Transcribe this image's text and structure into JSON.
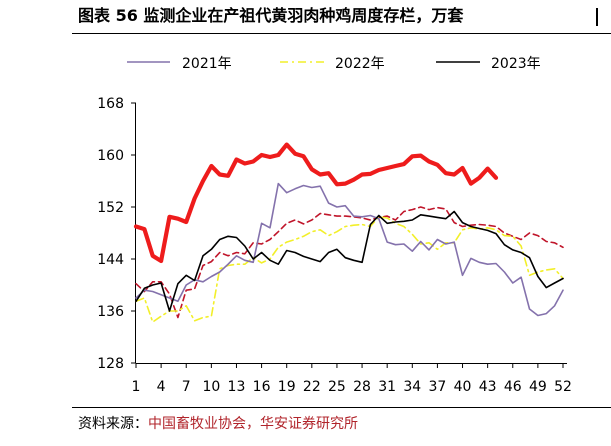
{
  "title": "图表 56  监测企业在产祖代黄羽肉种鸡周度存栏，万套",
  "source": {
    "label": "资料来源：",
    "organizations": "中国畜牧业协会，华安证券研究所"
  },
  "colors": {
    "series_2021": "#8472ac",
    "series_2022": "#f2ef2a",
    "series_2023": "#000000",
    "series_red": "#ee1c1c",
    "series_darkred": "#c0152a",
    "axis": "#000000"
  },
  "chart_data": {
    "type": "line",
    "title": "监测企业在产祖代黄羽肉种鸡周度存栏，万套",
    "xlabel": "",
    "ylabel": "",
    "ylim": [
      128,
      168
    ],
    "yticks": [
      128,
      136,
      144,
      152,
      160,
      168
    ],
    "xlim": [
      1,
      52
    ],
    "xticks": [
      1,
      4,
      7,
      10,
      13,
      16,
      19,
      22,
      25,
      28,
      31,
      34,
      37,
      40,
      43,
      46,
      49,
      52
    ],
    "legend_position": "top",
    "legend": [
      "2021年",
      "2022年",
      "2023年"
    ],
    "series": [
      {
        "name": "2021年",
        "style": "solid",
        "color": "#8472ac",
        "in_legend": true,
        "x": [
          1,
          2,
          3,
          4,
          5,
          6,
          7,
          8,
          9,
          10,
          11,
          12,
          13,
          14,
          15,
          16,
          17,
          18,
          19,
          20,
          21,
          22,
          23,
          24,
          25,
          26,
          27,
          28,
          29,
          30,
          31,
          32,
          33,
          34,
          35,
          36,
          37,
          38,
          39,
          40,
          41,
          42,
          43,
          44,
          45,
          46,
          47,
          48,
          49,
          50,
          51,
          52
        ],
        "values": [
          138.0,
          139.2,
          139.0,
          138.5,
          138.0,
          137.5,
          140.0,
          140.8,
          140.5,
          141.3,
          142.0,
          143.2,
          144.5,
          143.8,
          143.5,
          149.5,
          148.8,
          155.6,
          154.2,
          154.8,
          155.3,
          155.0,
          155.2,
          152.6,
          152.0,
          152.2,
          150.6,
          150.5,
          150.7,
          150.2,
          146.6,
          146.2,
          146.3,
          145.2,
          146.7,
          145.4,
          147.0,
          146.3,
          146.6,
          141.5,
          144.1,
          143.5,
          143.2,
          143.3,
          142.0,
          140.3,
          141.2,
          136.3,
          135.3,
          135.6,
          136.8,
          139.2
        ]
      },
      {
        "name": "2022年",
        "style": "dashdot",
        "color": "#f2ef2a",
        "in_legend": true,
        "x": [
          1,
          2,
          3,
          4,
          5,
          6,
          7,
          8,
          9,
          10,
          11,
          12,
          13,
          14,
          15,
          16,
          17,
          18,
          19,
          20,
          21,
          22,
          23,
          24,
          25,
          26,
          27,
          28,
          29,
          30,
          31,
          32,
          33,
          34,
          35,
          36,
          37,
          38,
          39,
          40,
          41,
          42,
          43,
          44,
          45,
          46,
          47,
          48,
          49,
          50,
          51,
          52
        ],
        "values": [
          137.5,
          138.0,
          134.3,
          135.2,
          136.0,
          136.0,
          136.8,
          134.5,
          135.0,
          135.2,
          142.5,
          143.0,
          143.2,
          143.2,
          144.2,
          143.4,
          144.0,
          145.8,
          146.6,
          147.0,
          147.5,
          148.2,
          148.5,
          147.6,
          148.2,
          149.0,
          149.2,
          149.3,
          149.0,
          150.5,
          150.3,
          149.5,
          149.0,
          147.8,
          146.3,
          146.5,
          145.5,
          146.5,
          146.5,
          148.5,
          148.8,
          148.6,
          148.8,
          148.5,
          147.6,
          147.5,
          146.0,
          141.5,
          142.0,
          142.3,
          142.5,
          141.0
        ]
      },
      {
        "name": "2023年",
        "style": "solid",
        "color": "#000000",
        "in_legend": true,
        "x": [
          1,
          2,
          3,
          4,
          5,
          6,
          7,
          8,
          9,
          10,
          11,
          12,
          13,
          14,
          15,
          16,
          17,
          18,
          19,
          20,
          21,
          22,
          23,
          24,
          25,
          26,
          27,
          28,
          29,
          30,
          31,
          32,
          33,
          34,
          35,
          36,
          37,
          38,
          39,
          40,
          41,
          42,
          43,
          44,
          45,
          46,
          47,
          48,
          49,
          50,
          51,
          52
        ],
        "values": [
          137.5,
          139.5,
          140.0,
          140.3,
          136.0,
          140.2,
          141.5,
          140.7,
          144.5,
          145.5,
          147.0,
          147.5,
          147.3,
          146.0,
          144.0,
          145.0,
          143.8,
          143.2,
          145.3,
          145.0,
          144.4,
          144.0,
          143.6,
          145.0,
          145.5,
          144.2,
          143.8,
          143.5,
          149.3,
          150.7,
          149.5,
          149.7,
          149.8,
          150.0,
          150.8,
          150.6,
          150.4,
          150.2,
          151.3,
          149.6,
          149.0,
          148.7,
          148.4,
          147.9,
          146.2,
          145.4,
          145.0,
          144.2,
          141.3,
          139.6,
          140.3,
          141.0
        ]
      },
      {
        "name": "",
        "style": "dashed",
        "color": "#c0152a",
        "in_legend": false,
        "x": [
          1,
          2,
          3,
          4,
          5,
          6,
          7,
          8,
          9,
          10,
          11,
          12,
          13,
          14,
          15,
          16,
          17,
          18,
          19,
          20,
          21,
          22,
          23,
          24,
          25,
          26,
          27,
          28,
          29,
          30,
          31,
          32,
          33,
          34,
          35,
          36,
          37,
          38,
          39,
          40,
          41,
          42,
          43,
          44,
          45,
          46,
          47,
          48,
          49,
          50,
          51,
          52
        ],
        "values": [
          140.2,
          139.0,
          140.5,
          140.5,
          138.6,
          135.0,
          139.2,
          139.4,
          143.0,
          143.6,
          145.0,
          144.5,
          145.0,
          144.8,
          146.5,
          146.3,
          147.0,
          148.2,
          149.5,
          150.0,
          149.4,
          150.0,
          151.0,
          150.8,
          150.6,
          150.6,
          150.5,
          150.3,
          150.0,
          150.4,
          150.6,
          150.0,
          151.3,
          151.6,
          152.0,
          151.6,
          151.9,
          151.7,
          149.6,
          149.0,
          149.2,
          149.3,
          149.2,
          149.0,
          148.0,
          147.5,
          147.0,
          148.0,
          147.6,
          146.7,
          146.5,
          145.8
        ]
      },
      {
        "name": "",
        "style": "solid-thick",
        "color": "#ee1c1c",
        "in_legend": false,
        "x": [
          1,
          2,
          3,
          4,
          5,
          6,
          7,
          8,
          9,
          10,
          11,
          12,
          13,
          14,
          15,
          16,
          17,
          18,
          19,
          20,
          21,
          22,
          23,
          24,
          25,
          26,
          27,
          28,
          29,
          30,
          31,
          32,
          33,
          34,
          35,
          36,
          37,
          38,
          39,
          40,
          41,
          42,
          43,
          44
        ],
        "values": [
          149.0,
          148.6,
          144.5,
          143.7,
          150.5,
          150.2,
          149.7,
          153.3,
          156.0,
          158.3,
          157.0,
          156.8,
          159.3,
          158.7,
          159.0,
          160.0,
          159.7,
          160.0,
          161.6,
          160.2,
          159.8,
          157.8,
          157.0,
          157.2,
          155.5,
          155.6,
          156.2,
          157.0,
          157.1,
          157.7,
          158.0,
          158.3,
          158.6,
          159.8,
          159.9,
          159.0,
          158.5,
          157.2,
          157.0,
          158.0,
          155.6,
          156.5,
          157.9,
          156.5
        ]
      }
    ]
  }
}
